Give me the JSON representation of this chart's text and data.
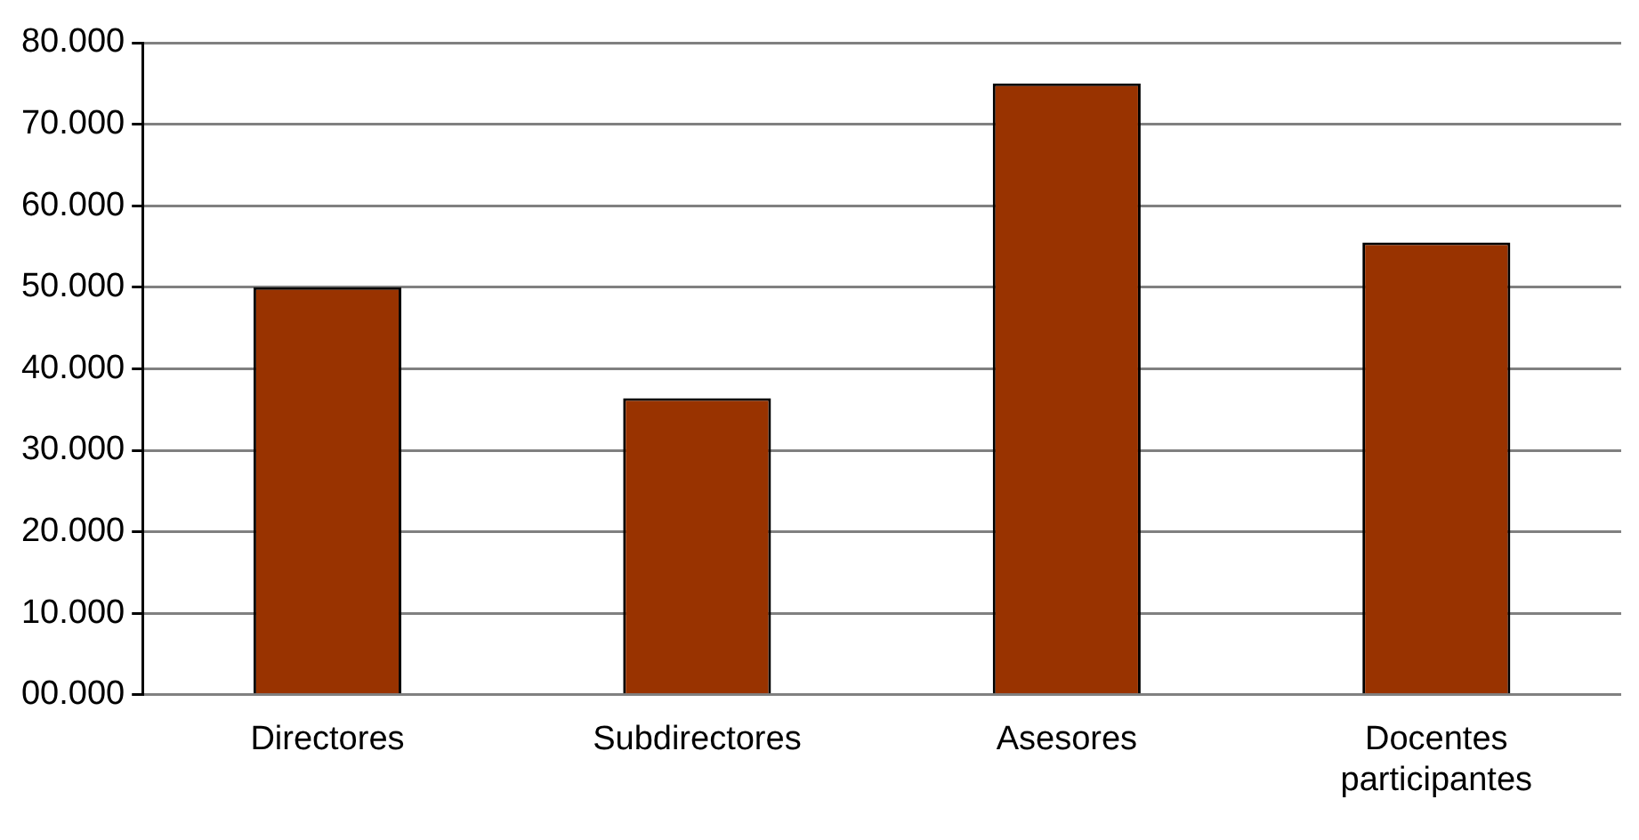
{
  "chart_data": {
    "type": "bar",
    "categories": [
      "Directores",
      "Subdirectores",
      "Asesores",
      "Docentes participantes"
    ],
    "values": [
      50000,
      36400,
      75000,
      55500
    ],
    "color": "#993300",
    "ylim": [
      0,
      80000
    ],
    "yticks": [
      {
        "value": 0,
        "label": "00.000"
      },
      {
        "value": 10000,
        "label": "10.000"
      },
      {
        "value": 20000,
        "label": "20.000"
      },
      {
        "value": 30000,
        "label": "30.000"
      },
      {
        "value": 40000,
        "label": "40.000"
      },
      {
        "value": 50000,
        "label": "50.000"
      },
      {
        "value": 60000,
        "label": "60.000"
      },
      {
        "value": 70000,
        "label": "70.000"
      },
      {
        "value": 80000,
        "label": "80.000"
      }
    ],
    "grid": "y",
    "legend": false
  }
}
